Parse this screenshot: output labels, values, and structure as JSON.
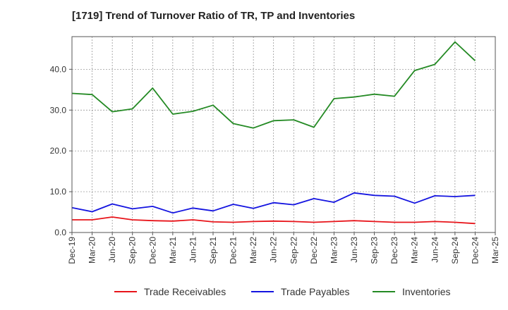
{
  "chart_data": {
    "type": "line",
    "title": "[1719]  Trend of Turnover Ratio of TR, TP and Inventories",
    "xlabel": "",
    "ylabel": "",
    "x": [
      "Dec-19",
      "Mar-20",
      "Jun-20",
      "Sep-20",
      "Dec-20",
      "Mar-21",
      "Jun-21",
      "Sep-21",
      "Dec-21",
      "Mar-22",
      "Jun-22",
      "Sep-22",
      "Dec-22",
      "Mar-23",
      "Jun-23",
      "Sep-23",
      "Dec-23",
      "Mar-24",
      "Jun-24",
      "Sep-24",
      "Dec-24"
    ],
    "x_ticks": [
      "Dec-19",
      "Mar-20",
      "Jun-20",
      "Sep-20",
      "Dec-20",
      "Mar-21",
      "Jun-21",
      "Sep-21",
      "Dec-21",
      "Mar-22",
      "Jun-22",
      "Sep-22",
      "Dec-22",
      "Mar-23",
      "Jun-23",
      "Sep-23",
      "Dec-23",
      "Mar-24",
      "Jun-24",
      "Sep-24",
      "Dec-24",
      "Mar-25"
    ],
    "ylim": [
      0,
      48
    ],
    "y_ticks": [
      0,
      10,
      20,
      30,
      40
    ],
    "y_tick_labels": [
      "0.0",
      "10.0",
      "20.0",
      "30.0",
      "40.0"
    ],
    "grid": true,
    "legend_position": "bottom",
    "series": [
      {
        "name": "Trade Receivables",
        "color": "#e8141a",
        "values": [
          3.1,
          3.1,
          3.8,
          3.1,
          2.9,
          2.8,
          3.1,
          2.6,
          2.5,
          2.7,
          2.8,
          2.7,
          2.5,
          2.7,
          2.9,
          2.7,
          2.5,
          2.5,
          2.7,
          2.5,
          2.2
        ]
      },
      {
        "name": "Trade Payables",
        "color": "#1414e0",
        "values": [
          6.1,
          5.1,
          7.0,
          5.8,
          6.4,
          4.8,
          6.0,
          5.3,
          6.9,
          5.9,
          7.3,
          6.8,
          8.3,
          7.4,
          9.7,
          9.1,
          8.9,
          7.2,
          9.0,
          8.8,
          9.1
        ]
      },
      {
        "name": "Inventories",
        "color": "#248a24",
        "values": [
          34.1,
          33.8,
          29.6,
          30.3,
          35.4,
          29.0,
          29.7,
          31.2,
          26.7,
          25.6,
          27.4,
          27.6,
          25.8,
          32.8,
          33.2,
          33.9,
          33.4,
          39.7,
          41.2,
          46.7,
          42.1
        ]
      }
    ]
  }
}
